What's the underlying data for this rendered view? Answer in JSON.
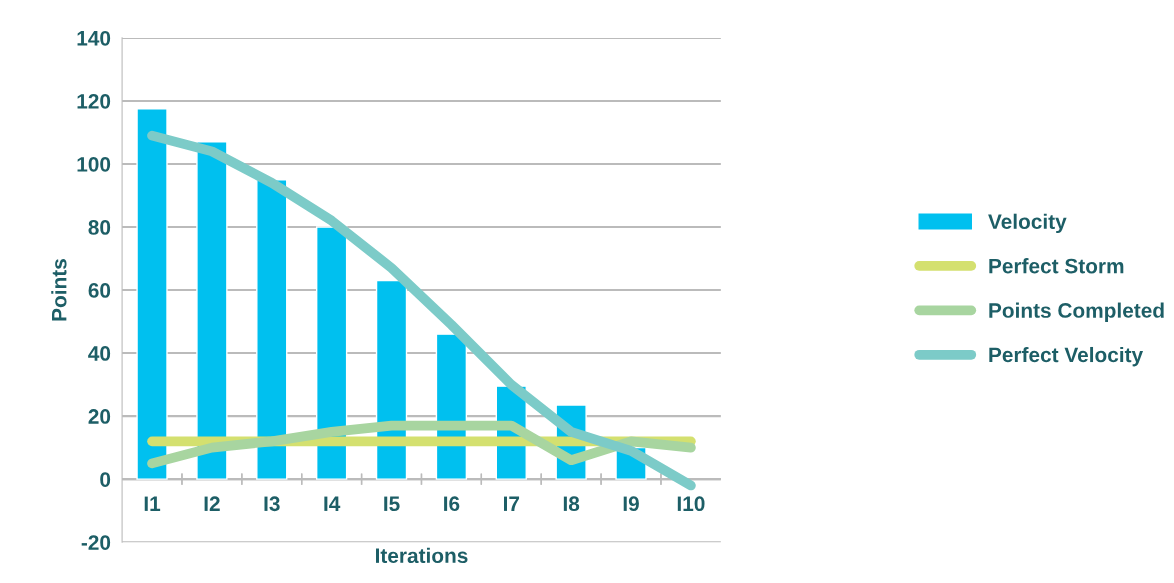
{
  "chart_data": {
    "type": "bar",
    "xlabel": "Iterations",
    "ylabel": "Points",
    "categories": [
      "I1",
      "I2",
      "I3",
      "I4",
      "I5",
      "I6",
      "I7",
      "I8",
      "I9",
      "I10"
    ],
    "series": [
      {
        "name": "Velocity",
        "color": "#00c0ef",
        "values": [
          117.5,
          107,
          95,
          80,
          63,
          46,
          29.5,
          23.5,
          10,
          null
        ]
      },
      {
        "name": "Perfect Storm",
        "type": "line",
        "color": "#d4e06f",
        "values": [
          12,
          12,
          12,
          12,
          12,
          12,
          12,
          12,
          12,
          12
        ]
      },
      {
        "name": "Points Completed",
        "type": "line",
        "color": "#a8d5a0",
        "values": [
          5,
          10,
          12,
          15,
          17,
          17,
          17,
          6,
          12,
          10
        ]
      },
      {
        "name": "Perfect Velocity",
        "type": "line",
        "color": "#7ccbc8",
        "values": [
          109,
          104,
          94,
          82,
          67,
          49,
          30,
          15,
          9,
          -2
        ]
      }
    ],
    "ylim": [
      -20,
      140
    ],
    "yticks": [
      -20,
      0,
      20,
      40,
      60,
      80,
      100,
      120,
      140
    ],
    "grid": "y",
    "legend": "right"
  }
}
